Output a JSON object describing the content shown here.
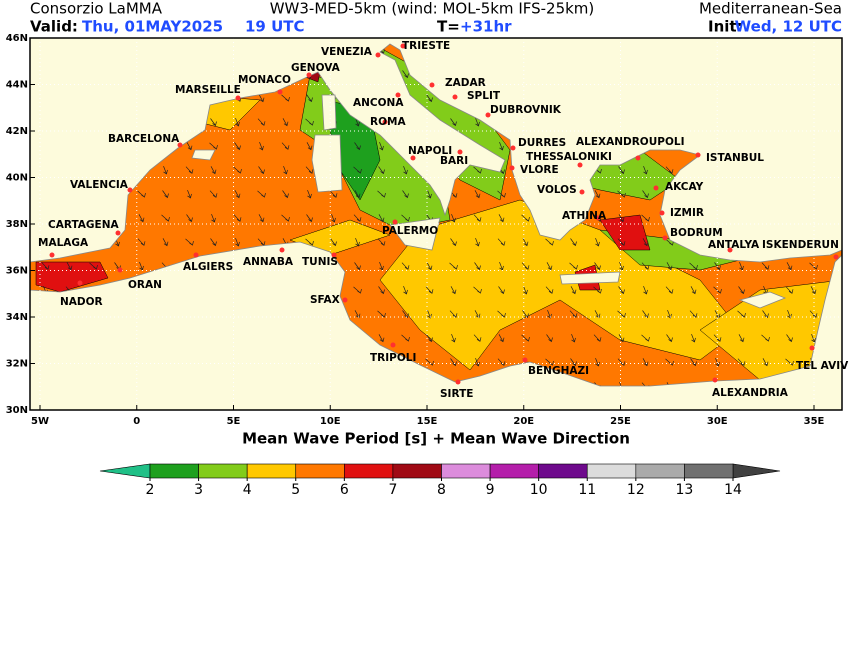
{
  "header": {
    "institute": "Consorzio LaMMA",
    "model": "WW3-MED-5km (wind: MOL-5km IFS-25km)",
    "region": "Mediterranean-Sea",
    "valid_label": "Valid:",
    "valid_date": "Thu, 01MAY2025",
    "valid_time": "19 UTC",
    "lead_label": "T=",
    "lead_time": "+31hr",
    "init_label": "Init:",
    "init_time": "Wed, 12 UTC"
  },
  "map": {
    "title": "Mean Wave Period [s] + Mean Wave Direction",
    "lon_ticks": [
      {
        "value": -5,
        "label": "5W"
      },
      0,
      {
        "value": 5,
        "label": "5E"
      },
      {
        "value": 10,
        "label": "10E"
      },
      {
        "value": 15,
        "label": "15E"
      },
      {
        "value": 20,
        "label": "20E"
      },
      {
        "value": 25,
        "label": "25E"
      },
      {
        "value": 30,
        "label": "30E"
      },
      {
        "value": 35,
        "label": "35E"
      }
    ],
    "lat_ticks": [
      {
        "value": 30,
        "label": "30N"
      },
      {
        "value": 32,
        "label": "32N"
      },
      {
        "value": 34,
        "label": "34N"
      },
      {
        "value": 36,
        "label": "36N"
      },
      {
        "value": 38,
        "label": "38N"
      },
      {
        "value": 40,
        "label": "40N"
      },
      {
        "value": 42,
        "label": "42N"
      },
      {
        "value": 44,
        "label": "44N"
      },
      {
        "value": 46,
        "label": "46N"
      }
    ],
    "cities": [
      "VENEZIA",
      "TRIESTE",
      "GENOVA",
      "MONACO",
      "MARSEILLE",
      "ZADAR",
      "ANCONA",
      "SPLIT",
      "DUBROVNIK",
      "ROMA",
      "BARCELONA",
      "NAPOLI",
      "BARI",
      "DURRES",
      "ALEXANDROUPOLI",
      "THESSALONIKI",
      "ISTANBUL",
      "VALENCIA",
      "VLORE",
      "VOLOS",
      "AKCAY",
      "ATHINA",
      "IZMIR",
      "CARTAGENA",
      "PALERMO",
      "BODRUM",
      "MALAGA",
      "ANTALYA",
      "ISKENDERUN",
      "ALGIERS",
      "ANNABA",
      "TUNIS",
      "ORAN",
      "NADOR",
      "SFAX",
      "TRIPOLI",
      "BENGHAZI",
      "TEL AVIV",
      "SIRTE",
      "ALEXANDRIA"
    ]
  },
  "legend": {
    "ticks": [
      2,
      3,
      4,
      5,
      6,
      7,
      8,
      9,
      10,
      11,
      12,
      13,
      14
    ],
    "colors": [
      "#20c087",
      "#1ea01e",
      "#82cc1a",
      "#ffc800",
      "#ff7800",
      "#e01010",
      "#a00a14",
      "#dc8cdc",
      "#b41eaa",
      "#6e0a8c",
      "#dcdcdc",
      "#aaaaaa",
      "#707070",
      "#404040"
    ]
  }
}
